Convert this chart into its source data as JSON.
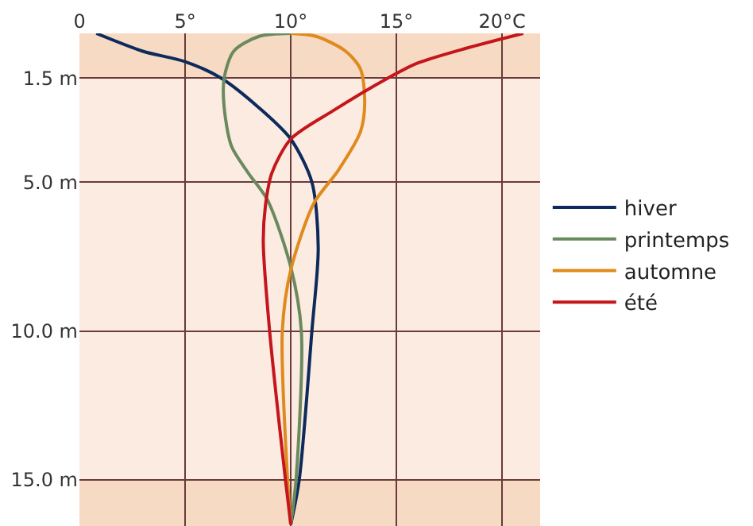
{
  "chart_data": {
    "type": "line",
    "xlim": [
      0,
      21.8
    ],
    "xticks": [
      {
        "value": 0,
        "label": "0"
      },
      {
        "value": 5,
        "label": "5°"
      },
      {
        "value": 10,
        "label": "10°"
      },
      {
        "value": 15,
        "label": "15°"
      },
      {
        "value": 20,
        "label": "20°C"
      }
    ],
    "ylim": [
      16.55,
      0
    ],
    "yticks": [
      {
        "value": 1.5,
        "label": "1.5 m"
      },
      {
        "value": 5,
        "label": "5.0 m"
      },
      {
        "value": 10,
        "label": "10.0 m"
      },
      {
        "value": 15,
        "label": "15.0 m"
      }
    ],
    "grid": true,
    "legend": "right",
    "marker": "none",
    "line_style": "solid",
    "bands": [
      {
        "axis": "y",
        "from": 0,
        "to": 1.5,
        "color": "#f7dac3"
      },
      {
        "axis": "y",
        "from": 15,
        "to": 16.55,
        "color": "#f7dac3"
      }
    ],
    "series": [
      {
        "name": "hiver",
        "color": "#0d2a5c",
        "x": [
          0.8,
          3,
          5,
          6.7,
          8.5,
          10,
          11,
          11.3,
          11,
          10.4,
          10
        ],
        "values": [
          0,
          0.6,
          0.95,
          1.5,
          2.5,
          3.55,
          5.0,
          7.2,
          10,
          15,
          16.5
        ]
      },
      {
        "name": "printemps",
        "color": "#6a8a5e",
        "x": [
          10,
          8.5,
          7.3,
          6.85,
          6.85,
          7.2,
          8.0,
          8.9,
          10,
          10.5,
          10.25,
          10
        ],
        "values": [
          0,
          0.1,
          0.6,
          1.5,
          2.5,
          3.8,
          4.7,
          5.6,
          7.85,
          10,
          15,
          16.5
        ]
      },
      {
        "name": "automne",
        "color": "#e08a1e",
        "x": [
          10,
          11.2,
          12.6,
          13.3,
          13.5,
          13.3,
          12.25,
          11.1,
          10,
          9.6,
          9.85,
          10
        ],
        "values": [
          0,
          0.1,
          0.6,
          1.2,
          2.3,
          3.3,
          4.6,
          5.7,
          7.95,
          10,
          15,
          16.5
        ]
      },
      {
        "name": "été",
        "color": "#c4161c",
        "x": [
          21,
          18.3,
          16,
          14.6,
          12,
          10,
          9.1,
          8.8,
          8.7,
          9.0,
          9.75,
          10
        ],
        "values": [
          0,
          0.5,
          1.0,
          1.5,
          2.6,
          3.55,
          4.7,
          5.8,
          7,
          10,
          15,
          16.5
        ]
      }
    ]
  }
}
